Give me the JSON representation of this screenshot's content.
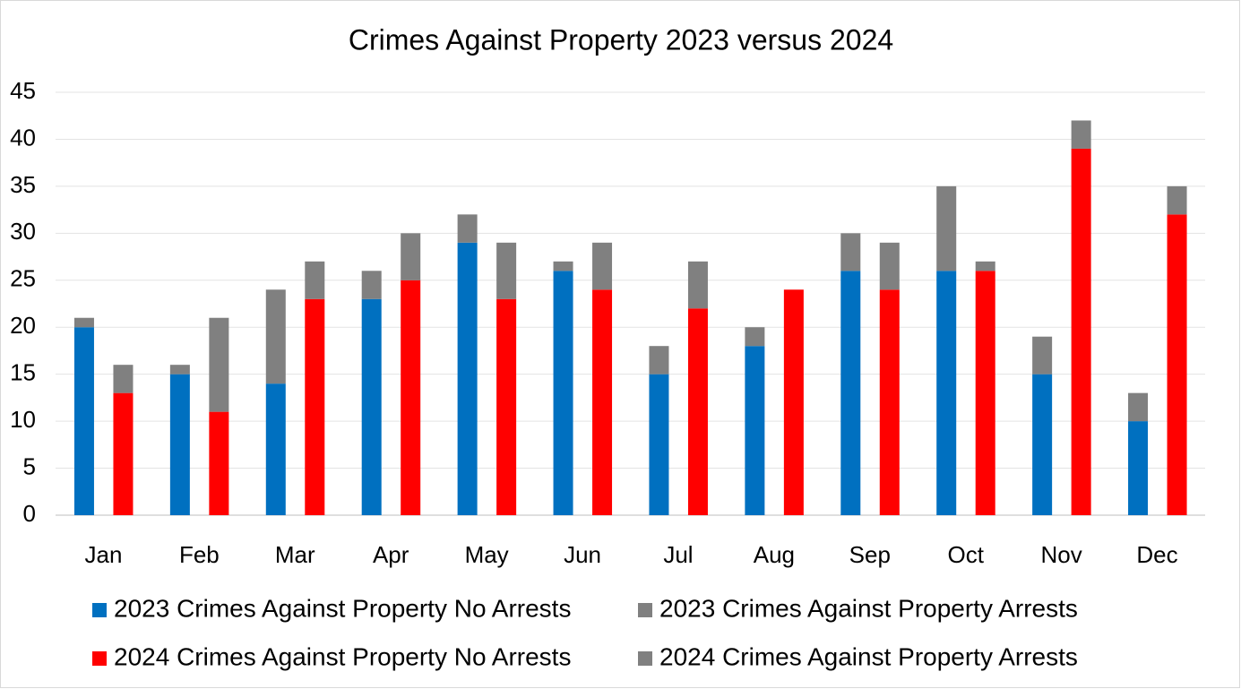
{
  "chart_data": {
    "type": "bar",
    "title": "Crimes Against Property 2023 versus 2024",
    "categories": [
      "Jan",
      "Feb",
      "Mar",
      "Apr",
      "May",
      "Jun",
      "Jul",
      "Aug",
      "Sep",
      "Oct",
      "Nov",
      "Dec"
    ],
    "series": [
      {
        "name": "2023 Crimes Against Property No Arrests",
        "color": "#0070c0",
        "values": [
          20,
          15,
          14,
          23,
          29,
          26,
          15,
          18,
          26,
          26,
          15,
          10
        ]
      },
      {
        "name": "2023 Crimes Against Property Arrests",
        "color": "#808080",
        "values": [
          1,
          1,
          10,
          3,
          3,
          1,
          3,
          2,
          4,
          9,
          4,
          3
        ]
      },
      {
        "name": "2024 Crimes Against Property No Arrests",
        "color": "#ff0000",
        "values": [
          13,
          11,
          23,
          25,
          23,
          24,
          22,
          24,
          24,
          26,
          39,
          32
        ]
      },
      {
        "name": "2024 Crimes Against Property Arrests",
        "color": "#808080",
        "values": [
          3,
          10,
          4,
          5,
          6,
          5,
          5,
          0,
          5,
          1,
          3,
          3
        ]
      }
    ],
    "ylim": [
      0,
      45
    ],
    "yticks": [
      0,
      5,
      10,
      15,
      20,
      25,
      30,
      35,
      40,
      45
    ],
    "grid": true
  }
}
